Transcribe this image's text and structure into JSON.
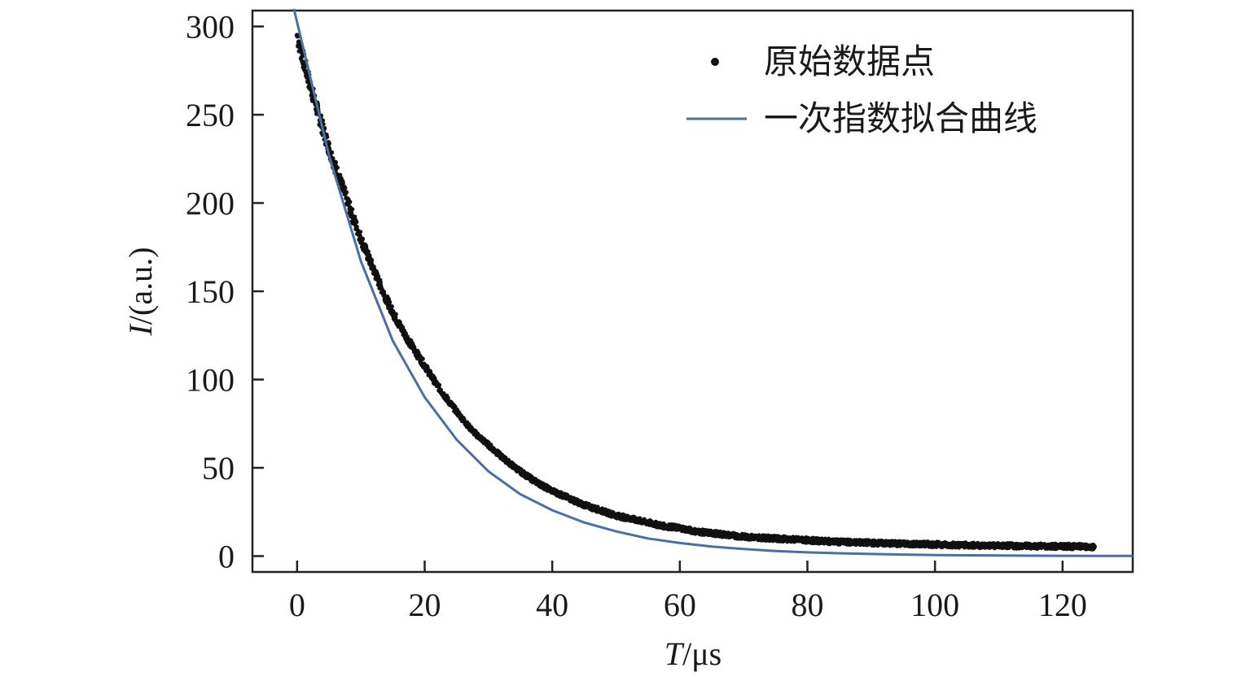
{
  "chart_data": {
    "type": "scatter",
    "xlabel_italic": "T",
    "xlabel_unit": "/μs",
    "ylabel_italic": "I",
    "ylabel_unit": "/(a.u.)",
    "xlim": [
      -7,
      131
    ],
    "ylim": [
      -9,
      309
    ],
    "xticks": [
      0,
      20,
      40,
      60,
      80,
      100,
      120
    ],
    "yticks": [
      0,
      50,
      100,
      150,
      200,
      250,
      300
    ],
    "legend": {
      "position": "top-right",
      "entries": [
        {
          "label": "原始数据点",
          "marker": "dot",
          "color": "#111111"
        },
        {
          "label": "一次指数拟合曲线",
          "marker": "line",
          "color": "#4a6fa5"
        }
      ]
    },
    "series": [
      {
        "name": "原始数据点",
        "kind": "scatter",
        "color": "#111111",
        "x": [
          0,
          2.5,
          5,
          7.5,
          10,
          12.5,
          15,
          17.5,
          20,
          22.5,
          25,
          27.5,
          30,
          32.5,
          35,
          37.5,
          40,
          42.5,
          45,
          47.5,
          50,
          52.5,
          55,
          57.5,
          60,
          62.5,
          65,
          67.5,
          70,
          72.5,
          75,
          77.5,
          80,
          82.5,
          85,
          87.5,
          90,
          92.5,
          95,
          97.5,
          100,
          102.5,
          105,
          107.5,
          110,
          112.5,
          115,
          117.5,
          120,
          122.5,
          125
        ],
        "y": [
          295,
          261,
          231,
          205,
          180,
          158,
          138,
          122,
          108,
          94,
          82,
          71,
          63,
          55,
          48,
          42,
          37,
          33,
          29,
          26,
          23,
          21,
          19,
          17,
          16,
          14,
          13,
          12,
          11,
          10.5,
          10,
          9.5,
          9,
          8.5,
          8,
          7.8,
          7.5,
          7.2,
          7,
          6.8,
          6.6,
          6.4,
          6.2,
          6,
          5.9,
          5.8,
          5.7,
          5.6,
          5.5,
          5.4,
          5.3
        ]
      },
      {
        "name": "一次指数拟合曲线",
        "kind": "line",
        "color": "#4a6fa5",
        "x": [
          -0.5,
          5,
          10,
          15,
          20,
          25,
          30,
          35,
          40,
          45,
          50,
          55,
          60,
          65,
          70,
          75,
          80,
          85,
          90,
          95,
          100,
          105,
          110,
          115,
          120,
          125,
          131
        ],
        "y": [
          310,
          227,
          167,
          122,
          90,
          66,
          48,
          35,
          26,
          19,
          14,
          10,
          7.4,
          5.4,
          4,
          2.9,
          2.1,
          1.6,
          1.2,
          0.85,
          0.6,
          0.45,
          0.33,
          0.24,
          0.18,
          0.13,
          0.09
        ]
      }
    ]
  }
}
